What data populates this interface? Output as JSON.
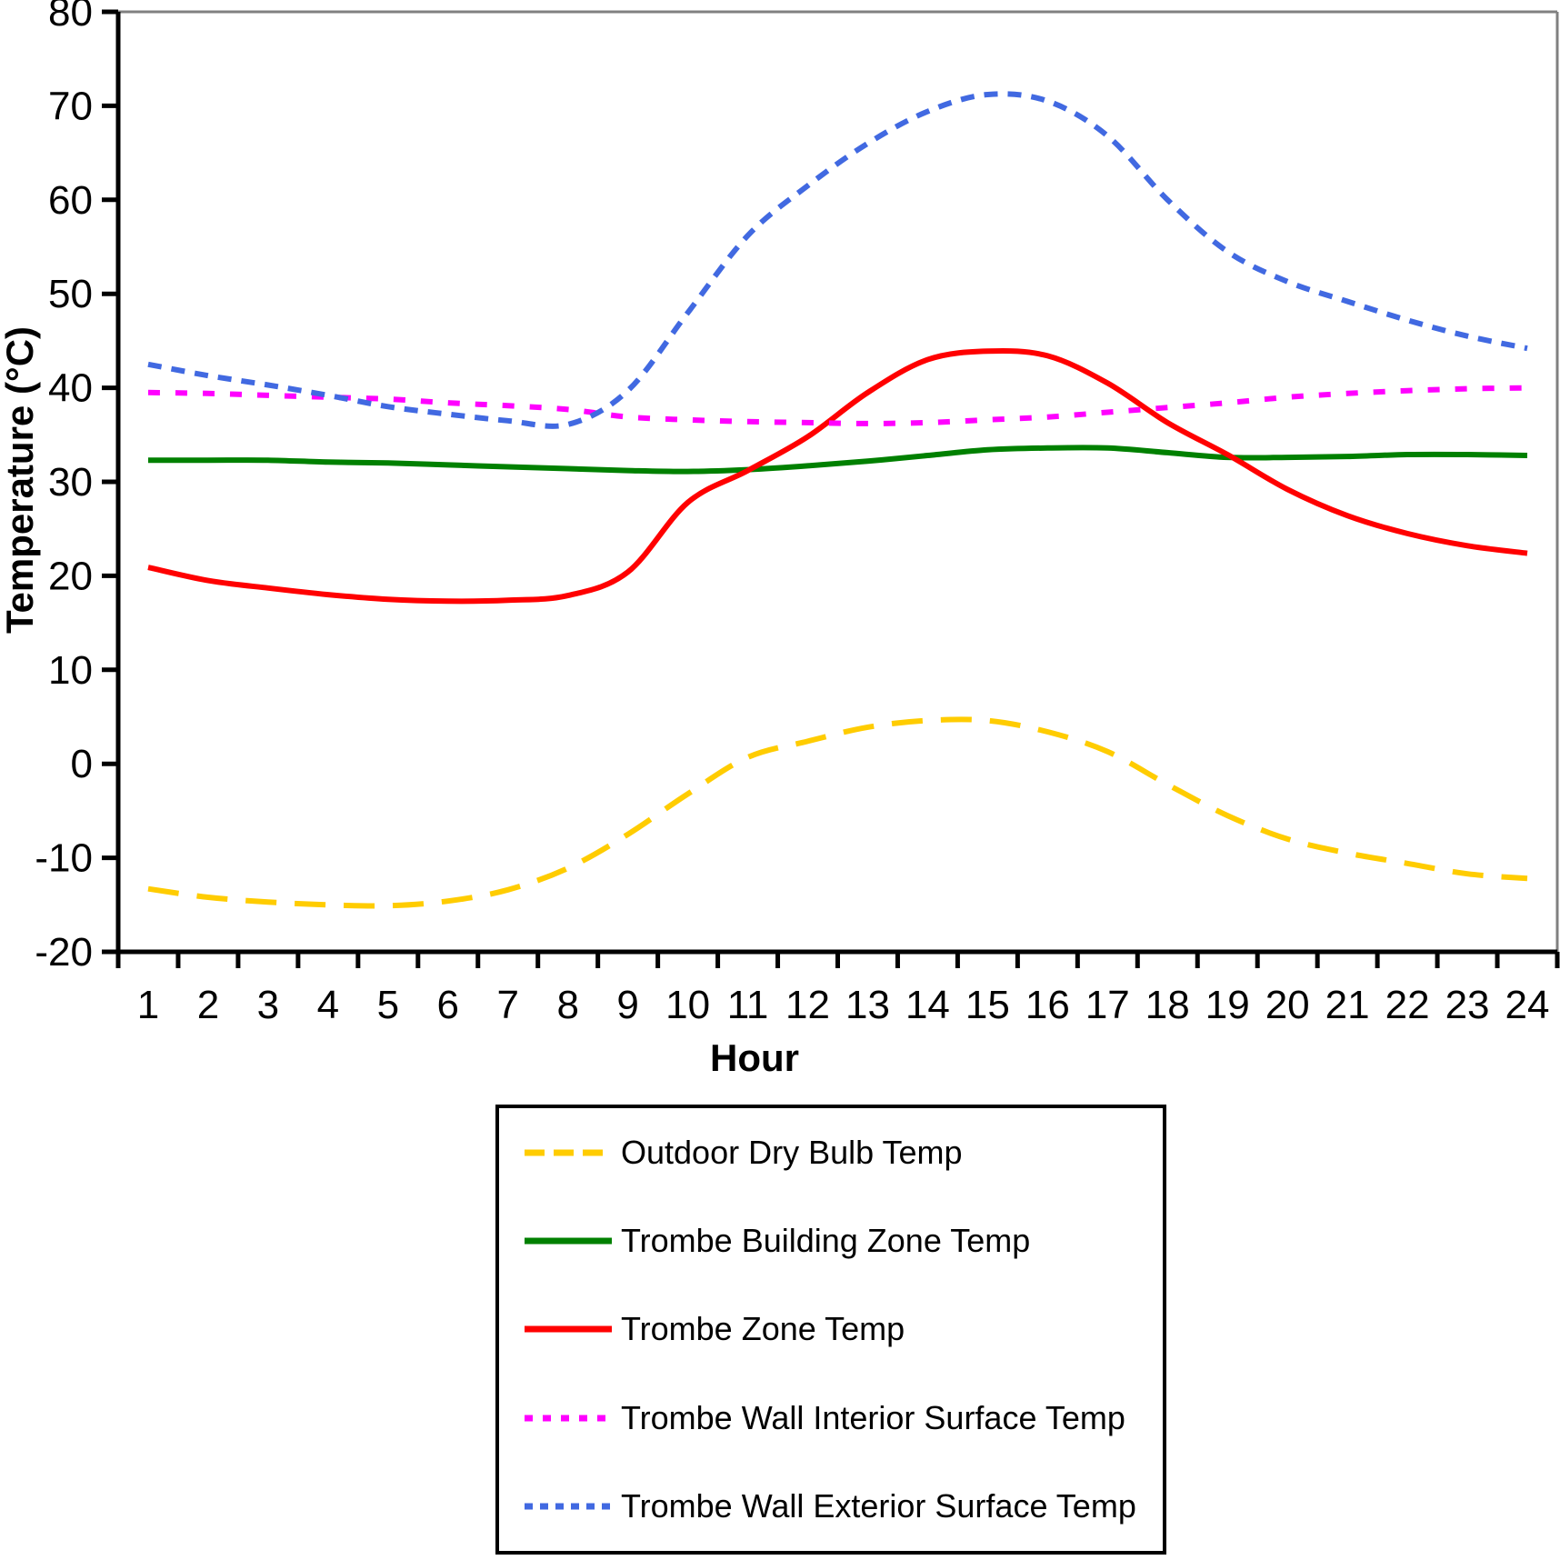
{
  "chart_data": {
    "type": "line",
    "title": "",
    "xlabel": "Hour",
    "ylabel": "Temperature (°C)",
    "x": [
      1,
      2,
      3,
      4,
      5,
      6,
      7,
      8,
      9,
      10,
      11,
      12,
      13,
      14,
      15,
      16,
      17,
      18,
      19,
      20,
      21,
      22,
      23,
      24
    ],
    "xlim": [
      1,
      24
    ],
    "ylim": [
      -20,
      80
    ],
    "ytick_step": 10,
    "grid": false,
    "legend_position": "bottom",
    "axis_color": "#000000",
    "plot_border_color": "#808080",
    "series": [
      {
        "name": "Outdoor Dry Bulb Temp",
        "color": "#FFCC00",
        "style": "dashed",
        "values": [
          -13.3,
          -14.2,
          -14.7,
          -15.0,
          -15.1,
          -14.6,
          -13.4,
          -11.1,
          -7.5,
          -3.2,
          0.7,
          2.4,
          3.9,
          4.6,
          4.6,
          3.4,
          1.3,
          -2.2,
          -5.5,
          -8.0,
          -9.5,
          -10.6,
          -11.7,
          -12.2
        ]
      },
      {
        "name": "Trombe Building Zone Temp",
        "color": "#008000",
        "style": "solid",
        "values": [
          32.3,
          32.3,
          32.3,
          32.1,
          32.0,
          31.8,
          31.6,
          31.4,
          31.2,
          31.1,
          31.3,
          31.7,
          32.2,
          32.8,
          33.4,
          33.6,
          33.6,
          33.1,
          32.6,
          32.6,
          32.7,
          32.9,
          32.9,
          32.8
        ]
      },
      {
        "name": "Trombe Zone Temp",
        "color": "#FF0000",
        "style": "solid",
        "values": [
          20.9,
          19.5,
          18.7,
          18.0,
          17.5,
          17.3,
          17.4,
          17.9,
          20.4,
          27.8,
          31.2,
          34.8,
          39.5,
          43.0,
          43.9,
          43.4,
          40.5,
          36.3,
          32.9,
          29.2,
          26.4,
          24.5,
          23.2,
          22.4
        ]
      },
      {
        "name": "Trombe Wall Interior Surface Temp",
        "color": "#FF00FF",
        "style": "dotted",
        "values": [
          39.5,
          39.4,
          39.2,
          39.0,
          38.8,
          38.4,
          38.1,
          37.7,
          36.9,
          36.6,
          36.4,
          36.3,
          36.2,
          36.3,
          36.6,
          36.9,
          37.4,
          37.9,
          38.4,
          39.0,
          39.4,
          39.7,
          39.9,
          40.0
        ]
      },
      {
        "name": "Trombe Wall Exterior Surface Temp",
        "color": "#4169E1",
        "style": "dense-dashed",
        "values": [
          42.5,
          41.3,
          40.3,
          39.2,
          38.0,
          37.2,
          36.5,
          36.1,
          39.7,
          48.0,
          56.2,
          61.5,
          66.0,
          69.4,
          71.2,
          70.5,
          66.8,
          60.0,
          54.5,
          51.3,
          49.2,
          47.2,
          45.5,
          44.2
        ]
      }
    ]
  }
}
